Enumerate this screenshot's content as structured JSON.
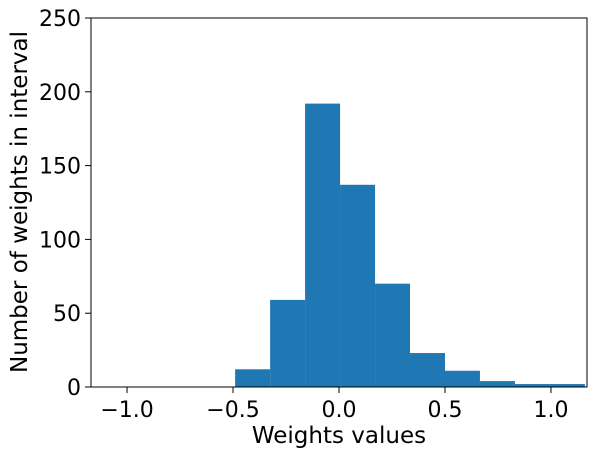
{
  "chart_data": {
    "type": "bar",
    "title": "",
    "xlabel": "Weights values",
    "ylabel": "Number of weights in interval",
    "xlim": [
      -1.17,
      1.17
    ],
    "ylim": [
      0,
      250
    ],
    "x_ticks": [
      -1.0,
      -0.5,
      0.0,
      0.5,
      1.0
    ],
    "x_tick_labels": [
      "−1.0",
      "−0.5",
      "0.0",
      "0.5",
      "1.0"
    ],
    "y_ticks": [
      0,
      50,
      100,
      150,
      200,
      250
    ],
    "y_tick_labels": [
      "0",
      "50",
      "100",
      "150",
      "200",
      "250"
    ],
    "bin_edges": [
      -0.49,
      -0.325,
      -0.16,
      0.005,
      0.17,
      0.335,
      0.5,
      0.665,
      0.83,
      0.995,
      1.16
    ],
    "values": [
      12,
      59,
      192,
      137,
      70,
      23,
      11,
      4,
      2,
      2
    ],
    "bar_color": "#1f77b4",
    "grid": false,
    "legend": "none"
  }
}
